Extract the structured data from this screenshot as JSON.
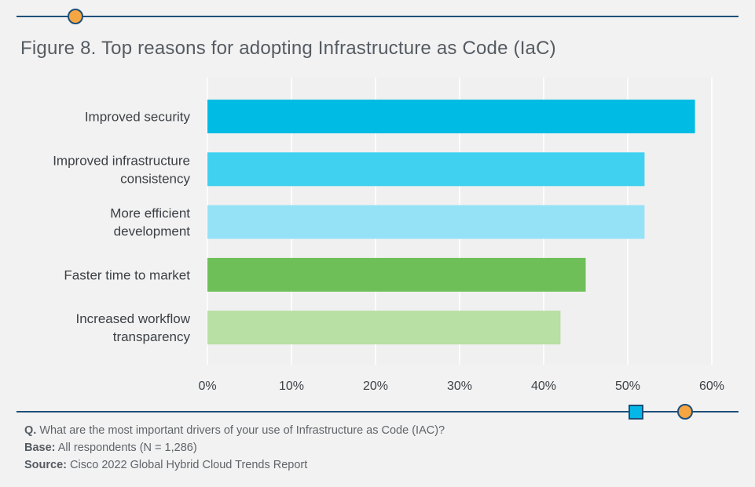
{
  "title": "Figure 8. Top reasons for adopting Infrastructure as Code (IaC)",
  "chart_data": {
    "type": "bar",
    "orientation": "horizontal",
    "title": "Figure 8. Top reasons for adopting Infrastructure as Code (IaC)",
    "categories": [
      [
        "Improved security"
      ],
      [
        "Improved infrastructure",
        "consistency"
      ],
      [
        "More efficient",
        "development"
      ],
      [
        "Faster time to market"
      ],
      [
        "Increased workflow",
        "transparency"
      ]
    ],
    "values": [
      58,
      52,
      52,
      45,
      42
    ],
    "bar_colors": [
      "#00bce4",
      "#3fd1ef",
      "#95e2f7",
      "#6ebf58",
      "#b8dfa4"
    ],
    "xlim": [
      0,
      60
    ],
    "x_ticks": [
      0,
      10,
      20,
      30,
      40,
      50,
      60
    ],
    "x_tick_labels": [
      "0%",
      "10%",
      "20%",
      "30%",
      "40%",
      "50%",
      "60%"
    ],
    "grid": true,
    "gridline_color": "#ffffff"
  },
  "notes": {
    "question_label": "Q.",
    "question_text": "What are the most important drivers of your use of Infrastructure as Code (IAC)?",
    "base_label": "Base:",
    "base_text": "All respondents (N = 1,286)",
    "source_label": "Source:",
    "source_text": "Cisco 2022 Global Hybrid Cloud Trends Report"
  },
  "colors": {
    "rule": "#1d4f7a",
    "accent_orange": "#f5a642",
    "accent_blue": "#05b7e6",
    "background": "#f2f2f2"
  }
}
